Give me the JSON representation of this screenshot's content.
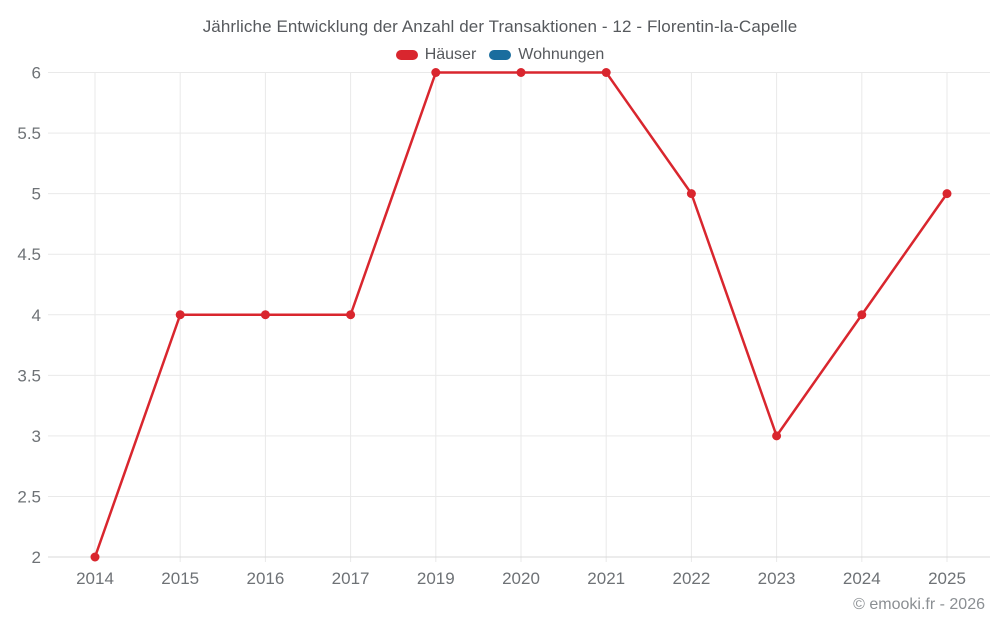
{
  "chart_data": {
    "type": "line",
    "title": "Jährliche Entwicklung der Anzahl der Transaktionen - 12 - Florentin-la-Capelle",
    "categories": [
      "2014",
      "2015",
      "2016",
      "2017",
      "2019",
      "2020",
      "2021",
      "2022",
      "2023",
      "2024",
      "2025"
    ],
    "series": [
      {
        "name": "Häuser",
        "color": "#d9262e",
        "values": [
          2,
          4,
          4,
          4,
          6,
          6,
          6,
          5,
          3,
          4,
          5
        ]
      },
      {
        "name": "Wohnungen",
        "color": "#1a6d9e",
        "values": []
      }
    ],
    "xlabel": "",
    "ylabel": "",
    "ylim": [
      2,
      6
    ],
    "yticks": [
      2,
      2.5,
      3,
      3.5,
      4,
      4.5,
      5,
      5.5,
      6
    ],
    "grid": true,
    "legend_position": "top"
  },
  "footer": {
    "text": "© emooki.fr - 2026"
  }
}
